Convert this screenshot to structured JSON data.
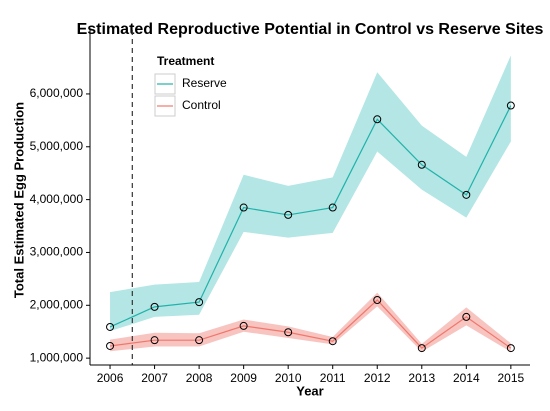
{
  "chart_data": {
    "type": "line",
    "title": "Estimated Reproductive Potential in Control vs Reserve Sites",
    "x_label": "Year",
    "y_label": "Total Estimated Egg Production",
    "x": [
      2006,
      2007,
      2008,
      2009,
      2010,
      2011,
      2012,
      2013,
      2014,
      2015
    ],
    "series": [
      {
        "name": "Reserve",
        "color": "#20b2aa",
        "band_color": "#b3e6e4",
        "values": [
          1590000,
          1970000,
          2060000,
          3850000,
          3710000,
          3850000,
          5520000,
          4660000,
          4090000,
          5780000
        ],
        "lower": [
          1510000,
          1780000,
          1820000,
          3390000,
          3280000,
          3370000,
          4910000,
          4190000,
          3660000,
          5100000
        ],
        "upper": [
          2250000,
          2390000,
          2440000,
          4470000,
          4260000,
          4420000,
          6410000,
          5400000,
          4810000,
          6730000
        ]
      },
      {
        "name": "Control",
        "color": "#f0776c",
        "band_color": "#f8c4c0",
        "values": [
          1230000,
          1340000,
          1340000,
          1610000,
          1490000,
          1320000,
          2100000,
          1190000,
          1780000,
          1190000
        ],
        "lower": [
          1130000,
          1220000,
          1220000,
          1500000,
          1380000,
          1260000,
          1980000,
          1120000,
          1620000,
          1120000
        ],
        "upper": [
          1350000,
          1480000,
          1470000,
          1730000,
          1600000,
          1400000,
          2240000,
          1270000,
          1960000,
          1280000
        ]
      }
    ],
    "legend_title": "Treatment",
    "legend_position": "upper left",
    "vline": 2006.5,
    "xlim": [
      2005.55,
      2015.43
    ],
    "xticks": [
      2006,
      2007,
      2008,
      2009,
      2010,
      2011,
      2012,
      2013,
      2014,
      2015
    ],
    "ylim": [
      870000,
      7210000
    ],
    "yticks": [
      {
        "value": 1000000,
        "label": "1,000,000"
      },
      {
        "value": 2000000,
        "label": "2,000,000"
      },
      {
        "value": 3000000,
        "label": "3,000,000"
      },
      {
        "value": 4000000,
        "label": "4,000,000"
      },
      {
        "value": 5000000,
        "label": "5,000,000"
      },
      {
        "value": 6000000,
        "label": "6,000,000"
      }
    ],
    "grid": false
  }
}
